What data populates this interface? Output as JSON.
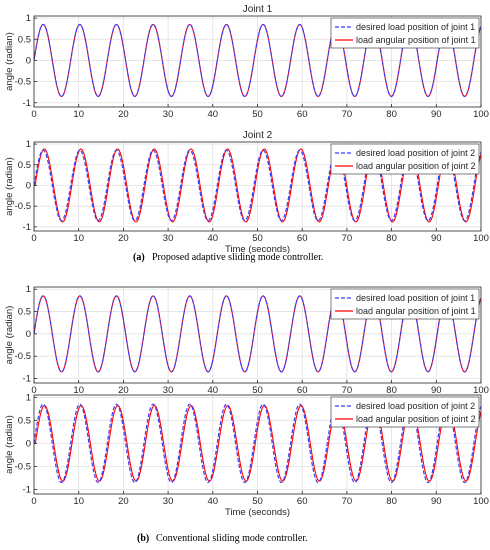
{
  "chart_data": [
    {
      "type": "line",
      "title": "Joint 1",
      "xlabel": "",
      "ylabel": "angle (radian)",
      "xlim": [
        0,
        100
      ],
      "ylim": [
        -1.1,
        1.05
      ],
      "xticks": [
        0,
        10,
        20,
        30,
        40,
        50,
        60,
        70,
        80,
        90,
        100
      ],
      "yticks": [
        1,
        0.5,
        0,
        -0.5,
        -1
      ],
      "ytick_labels": [
        "1",
        "0.5",
        "0",
        "-0.5",
        "-1"
      ],
      "grid": true,
      "legend_position": "top-right",
      "series": [
        {
          "name": "desired load position of joint 1",
          "color": "#3b3bff",
          "style": "dashed",
          "amplitude": 0.85,
          "period": 8.2,
          "tracking_lag": 0
        },
        {
          "name": "load angular position of joint 1",
          "color": "#ff0000",
          "style": "solid",
          "amplitude": 0.85,
          "period": 8.2,
          "tracking_lag": 0
        }
      ]
    },
    {
      "type": "line",
      "title": "Joint 2",
      "xlabel": "Time (seconds)",
      "ylabel": "angle (radian)",
      "xlim": [
        0,
        100
      ],
      "ylim": [
        -1.1,
        1.05
      ],
      "xticks": [
        0,
        10,
        20,
        30,
        40,
        50,
        60,
        70,
        80,
        90,
        100
      ],
      "yticks": [
        1,
        0.5,
        0,
        -0.5,
        -1
      ],
      "ytick_labels": [
        "1",
        "0.5",
        "0",
        "-0.5",
        "-1"
      ],
      "grid": true,
      "legend_position": "top-right",
      "series": [
        {
          "name": "desired load position of joint 2",
          "color": "#3b3bff",
          "style": "dashed",
          "amplitude": 0.85,
          "period": 8.2,
          "tracking_lag": 0
        },
        {
          "name": "load angular position of joint 2",
          "color": "#ff0000",
          "style": "solid",
          "amplitude": 0.88,
          "period": 8.2,
          "tracking_lag": 0.25
        }
      ]
    },
    {
      "type": "line",
      "title": "",
      "xlabel": "",
      "ylabel": "angle (radian)",
      "xlim": [
        0,
        100
      ],
      "ylim": [
        -1.1,
        1.05
      ],
      "xticks": [
        0,
        10,
        20,
        30,
        40,
        50,
        60,
        70,
        80,
        90,
        100
      ],
      "yticks": [
        1,
        0.5,
        0,
        -0.5,
        -1
      ],
      "ytick_labels": [
        "1",
        "0.5",
        "0",
        "-0.5",
        "-1"
      ],
      "grid": true,
      "legend_position": "top-right",
      "series": [
        {
          "name": "desired load position of joint 1",
          "color": "#3b3bff",
          "style": "dashed",
          "amplitude": 0.85,
          "period": 8.2,
          "tracking_lag": 0
        },
        {
          "name": "load angular position of joint 1",
          "color": "#ff0000",
          "style": "solid",
          "amplitude": 0.85,
          "period": 8.2,
          "tracking_lag": 0
        }
      ]
    },
    {
      "type": "line",
      "title": "",
      "xlabel": "Time (seconds)",
      "ylabel": "angle (radian)",
      "xlim": [
        0,
        100
      ],
      "ylim": [
        -1.1,
        1.05
      ],
      "xticks": [
        0,
        10,
        20,
        30,
        40,
        50,
        60,
        70,
        80,
        90,
        100
      ],
      "yticks": [
        1,
        0.5,
        0,
        -0.5,
        -1
      ],
      "ytick_labels": [
        "1",
        "0.5",
        "0",
        "-0.5",
        "-1"
      ],
      "grid": true,
      "legend_position": "top-right",
      "series": [
        {
          "name": "desired load position of joint 2",
          "color": "#3b3bff",
          "style": "dashed",
          "amplitude": 0.85,
          "period": 8.2,
          "tracking_lag": 0
        },
        {
          "name": "load angular position of joint 2",
          "color": "#ff0000",
          "style": "solid",
          "amplitude": 0.82,
          "period": 8.2,
          "tracking_lag": 0.3
        }
      ]
    }
  ],
  "captions": [
    {
      "label": "(a)",
      "text": "Proposed adaptive sliding mode controller."
    },
    {
      "label": "(b)",
      "text": "Conventional sliding mode controller."
    }
  ]
}
